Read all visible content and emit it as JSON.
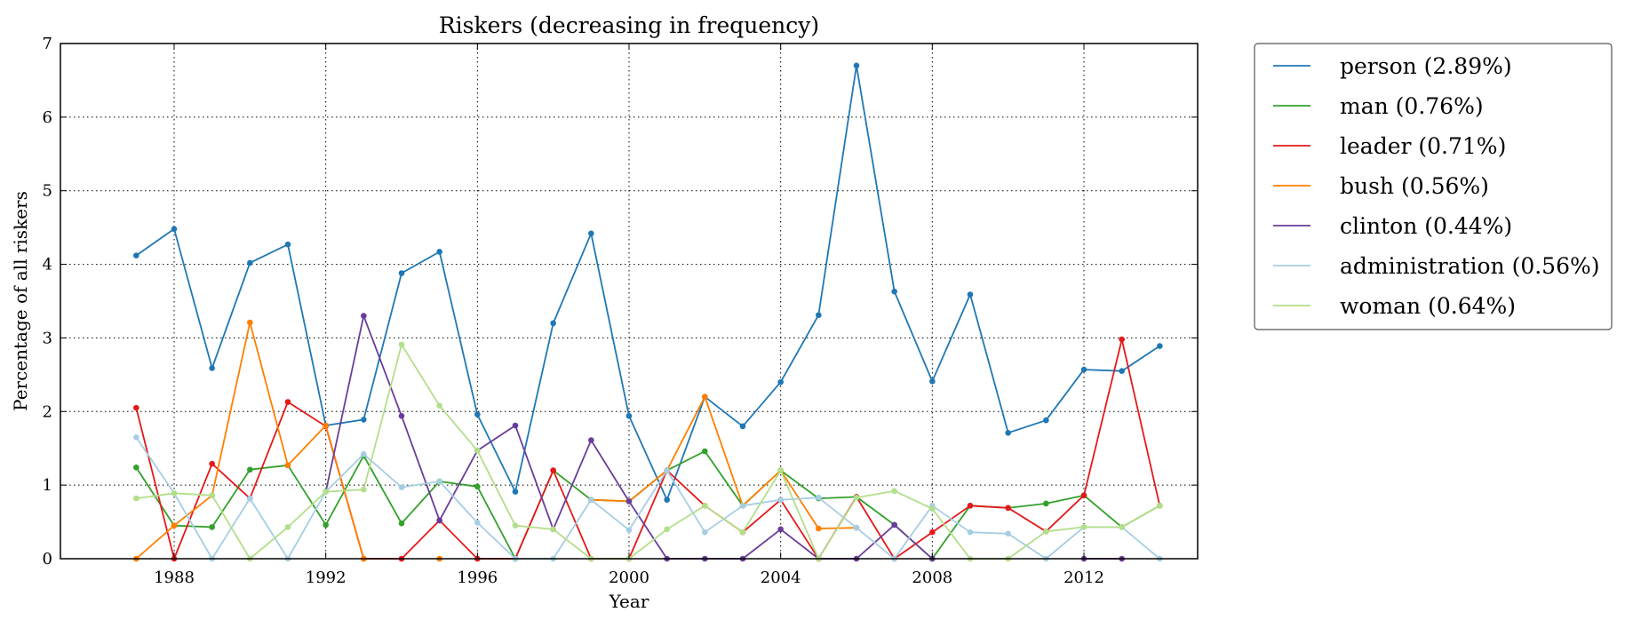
{
  "chart_data": {
    "type": "line",
    "title": "Riskers (decreasing in frequency)",
    "xlabel": "Year",
    "ylabel": "Percentage of all riskers",
    "xlim": [
      1985,
      2015
    ],
    "ylim": [
      0,
      7
    ],
    "xticks": [
      1988,
      1992,
      1996,
      2000,
      2004,
      2008,
      2012
    ],
    "yticks": [
      0,
      1,
      2,
      3,
      4,
      5,
      6,
      7
    ],
    "grid": true,
    "legend_position": "outside-top-right",
    "x": [
      1987,
      1988,
      1989,
      1990,
      1991,
      1992,
      1993,
      1994,
      1995,
      1996,
      1997,
      1998,
      1999,
      2000,
      2001,
      2002,
      2003,
      2004,
      2005,
      2006,
      2007,
      2008,
      2009,
      2010,
      2011,
      2012,
      2013,
      2014
    ],
    "series": [
      {
        "name": "person (2.89%)",
        "color": "#1f78b4",
        "values": [
          4.12,
          4.48,
          2.59,
          4.02,
          4.27,
          1.81,
          1.89,
          3.88,
          4.17,
          1.96,
          0.91,
          3.2,
          4.42,
          1.94,
          0.8,
          2.2,
          1.8,
          2.4,
          3.31,
          6.7,
          3.63,
          2.41,
          3.59,
          1.71,
          1.88,
          2.57,
          2.55,
          2.89
        ]
      },
      {
        "name": "man (0.76%)",
        "color": "#33a02c",
        "values": [
          1.24,
          0.45,
          0.43,
          1.21,
          1.27,
          0.46,
          1.4,
          0.48,
          1.05,
          0.98,
          0.0,
          1.2,
          0.8,
          0.78,
          1.2,
          1.46,
          0.72,
          1.2,
          0.82,
          0.84,
          0.46,
          0.0,
          0.72,
          0.69,
          0.75,
          0.86,
          0.43,
          0.72
        ]
      },
      {
        "name": "leader (0.71%)",
        "color": "#e31a1c",
        "values": [
          2.05,
          0.0,
          1.29,
          0.82,
          2.13,
          1.8,
          0.0,
          0.0,
          0.52,
          0.0,
          0.0,
          1.2,
          0.0,
          0.0,
          1.2,
          0.72,
          0.36,
          0.8,
          0.0,
          0.84,
          0.0,
          0.36,
          0.72,
          0.69,
          0.37,
          0.86,
          2.98,
          0.72
        ]
      },
      {
        "name": "bush (0.56%)",
        "color": "#ff7f00",
        "values": [
          0.0,
          0.45,
          0.86,
          3.21,
          1.27,
          1.81,
          0.0,
          null,
          0.0,
          null,
          null,
          null,
          0.8,
          0.78,
          1.2,
          2.2,
          0.72,
          1.2,
          0.41,
          0.42,
          null,
          null,
          null,
          null,
          null,
          null,
          null,
          null
        ]
      },
      {
        "name": "clinton (0.44%)",
        "color": "#6a3d9a",
        "values": [
          null,
          null,
          null,
          null,
          null,
          0.91,
          3.3,
          1.94,
          0.52,
          1.47,
          1.81,
          0.4,
          1.61,
          0.78,
          0.0,
          0.0,
          0.0,
          0.4,
          0.0,
          0.0,
          0.46,
          0.0,
          null,
          null,
          null,
          0.0,
          0.0,
          null
        ]
      },
      {
        "name": "administration (0.56%)",
        "color": "#a6cee3",
        "values": [
          1.65,
          0.89,
          0.0,
          0.82,
          0.0,
          0.91,
          1.42,
          0.97,
          1.05,
          0.49,
          0.0,
          0.0,
          0.8,
          0.39,
          1.2,
          0.36,
          0.72,
          0.8,
          0.83,
          0.42,
          0.0,
          0.72,
          0.36,
          0.34,
          0.0,
          0.43,
          0.43,
          0.0
        ]
      },
      {
        "name": "woman (0.64%)",
        "color": "#b2df8a",
        "values": [
          0.82,
          0.89,
          0.86,
          0.0,
          0.43,
          0.91,
          0.94,
          2.91,
          2.08,
          1.47,
          0.45,
          0.4,
          0.0,
          0.0,
          0.4,
          0.72,
          0.36,
          1.2,
          0.0,
          0.83,
          0.92,
          0.68,
          0.0,
          0.0,
          0.37,
          0.43,
          0.43,
          0.72
        ]
      }
    ]
  }
}
